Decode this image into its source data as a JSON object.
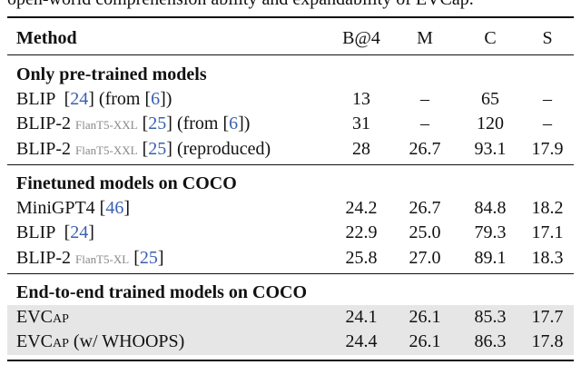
{
  "caption": "open-world comprehension ability and expandability of EVCap.",
  "table": {
    "header": [
      "Method",
      "B@4",
      "M",
      "C",
      "S"
    ],
    "groups": [
      {
        "title": "Only pre-trained models",
        "rows": [
          {
            "method": [
              {
                "text": "BLIP  [",
                "kind": "text"
              },
              {
                "text": "24",
                "kind": "cite"
              },
              {
                "text": "] (from [",
                "kind": "text"
              },
              {
                "text": "6",
                "kind": "cite"
              },
              {
                "text": "])",
                "kind": "text"
              }
            ],
            "cells": [
              "13",
              "–",
              "65",
              "–"
            ],
            "shaded": false
          },
          {
            "method": [
              {
                "text": "BLIP-2 ",
                "kind": "text"
              },
              {
                "text": "FlanT5-XXL",
                "kind": "sub"
              },
              {
                "text": " [",
                "kind": "text"
              },
              {
                "text": "25",
                "kind": "cite"
              },
              {
                "text": "] (from [",
                "kind": "text"
              },
              {
                "text": "6",
                "kind": "cite"
              },
              {
                "text": "])",
                "kind": "text"
              }
            ],
            "cells": [
              "31",
              "–",
              "120",
              "–"
            ],
            "shaded": false
          },
          {
            "method": [
              {
                "text": "BLIP-2 ",
                "kind": "text"
              },
              {
                "text": "FlanT5-XXL",
                "kind": "sub"
              },
              {
                "text": " [",
                "kind": "text"
              },
              {
                "text": "25",
                "kind": "cite"
              },
              {
                "text": "] (reproduced)",
                "kind": "text"
              }
            ],
            "cells": [
              "28",
              "26.7",
              "93.1",
              "17.9"
            ],
            "shaded": false
          }
        ]
      },
      {
        "title": "Finetuned models on COCO",
        "rows": [
          {
            "method": [
              {
                "text": "MiniGPT4 [",
                "kind": "text"
              },
              {
                "text": "46",
                "kind": "cite"
              },
              {
                "text": "]",
                "kind": "text"
              }
            ],
            "cells": [
              "24.2",
              "26.7",
              "84.8",
              "18.2"
            ],
            "shaded": false
          },
          {
            "method": [
              {
                "text": "BLIP  [",
                "kind": "text"
              },
              {
                "text": "24",
                "kind": "cite"
              },
              {
                "text": "]",
                "kind": "text"
              }
            ],
            "cells": [
              "22.9",
              "25.0",
              "79.3",
              "17.1"
            ],
            "shaded": false
          },
          {
            "method": [
              {
                "text": "BLIP-2 ",
                "kind": "text"
              },
              {
                "text": "FlanT5-XL",
                "kind": "sub"
              },
              {
                "text": " [",
                "kind": "text"
              },
              {
                "text": "25",
                "kind": "cite"
              },
              {
                "text": "]",
                "kind": "text"
              }
            ],
            "cells": [
              "25.8",
              "27.0",
              "89.1",
              "18.3"
            ],
            "shaded": false
          }
        ]
      },
      {
        "title": "End-to-end trained models on COCO",
        "rows": [
          {
            "method": [
              {
                "text": "EVCap",
                "kind": "smallcaps"
              }
            ],
            "cells": [
              "24.1",
              "26.1",
              "85.3",
              "17.7"
            ],
            "shaded": true
          },
          {
            "method": [
              {
                "text": "EVCap",
                "kind": "smallcaps"
              },
              {
                "text": " (w/ WHOOPS)",
                "kind": "text"
              }
            ],
            "cells": [
              "24.4",
              "26.1",
              "86.3",
              "17.8"
            ],
            "shaded": true
          }
        ]
      }
    ]
  }
}
